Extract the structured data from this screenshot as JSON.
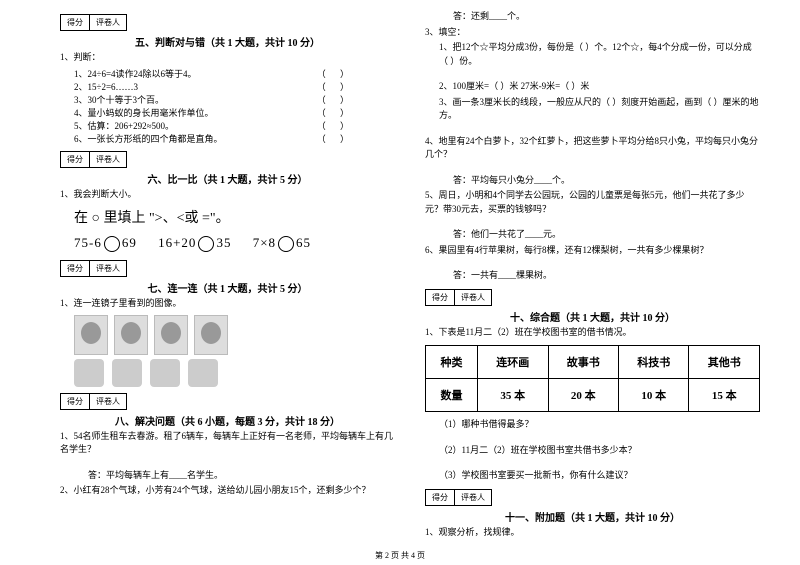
{
  "scorebox": {
    "score": "得分",
    "reviewer": "评卷人"
  },
  "left": {
    "sec5": {
      "title": "五、判断对与错（共 1 大题，共计 10 分）",
      "q1": "1、判断：",
      "items": [
        "1、24÷6=4读作24除以6等于4。",
        "2、15÷2=6……3",
        "3、30个十等于3个百。",
        "4、量小蚂蚁的身长用毫米作单位。",
        "5、估算：206+292≈500。",
        "6、一张长方形纸的四个角都是直角。"
      ],
      "paren": "（    ）"
    },
    "sec6": {
      "title": "六、比一比（共 1 大题，共计 5 分）",
      "q1": "1、我会判断大小。",
      "instr": "在 ○ 里填上 \">、<或 =\"。",
      "row": [
        "75-6",
        "69",
        "16+20",
        "35",
        "7×8",
        "65"
      ]
    },
    "sec7": {
      "title": "七、连一连（共 1 大题，共计 5 分）",
      "q1": "1、连一连镜子里看到的图像。"
    },
    "sec8": {
      "title": "八、解决问题（共 6 小题，每题 3 分，共计 18 分）",
      "q1": "1、54名师生租车去春游。租了6辆车，每辆车上正好有一名老师，平均每辆车上有几名学生？",
      "a1": "答：平均每辆车上有____名学生。",
      "q2": "2、小红有28个气球，小芳有24个气球，送给幼儿园小朋友15个，还剩多少个？"
    }
  },
  "right": {
    "a2": "答：还剩____个。",
    "q3": "3、填空：",
    "q3_1": "1、把12个☆平均分成3份，每份是（    ）个。12个☆，每4个分成一份，可以分成（    ）份。",
    "q3_2": "2、100厘米=（    ）米          27米-9米=（    ）米",
    "q3_3": "3、画一条3厘米长的线段，一般应从尺的（    ）刻度开始画起，画到（    ）厘米的地方。",
    "q4": "4、地里有24个白萝卜，32个红萝卜，把这些萝卜平均分给8只小兔，平均每只小兔分几个？",
    "a4": "答：平均每只小兔分____个。",
    "q5": "5、周日，小明和4个同学去公园玩，公园的儿童票是每张5元，他们一共花了多少元？带30元去，买票的钱够吗？",
    "a5": "答：他们一共花了____元。",
    "q6": "6、果园里有4行苹果树，每行8棵，还有12棵梨树，一共有多少棵果树？",
    "a6": "答：一共有____棵果树。",
    "sec10": {
      "title": "十、综合题（共 1 大题，共计 10 分）",
      "q1": "1、下表是11月二（2）班在学校图书室的借书情况。",
      "table": {
        "headers": [
          "种类",
          "连环画",
          "故事书",
          "科技书",
          "其他书"
        ],
        "row_label": "数量",
        "values": [
          "35 本",
          "20 本",
          "10 本",
          "15 本"
        ]
      },
      "sub1": "（1）哪种书借得最多？",
      "sub2": "（2）11月二（2）班在学校图书室共借书多少本？",
      "sub3": "（3）学校图书室要买一批新书，你有什么建议？"
    },
    "sec11": {
      "title": "十一、附加题（共 1 大题，共计 10 分）",
      "q1": "1、观察分析，找规律。"
    }
  },
  "footer": "第 2 页 共 4 页"
}
